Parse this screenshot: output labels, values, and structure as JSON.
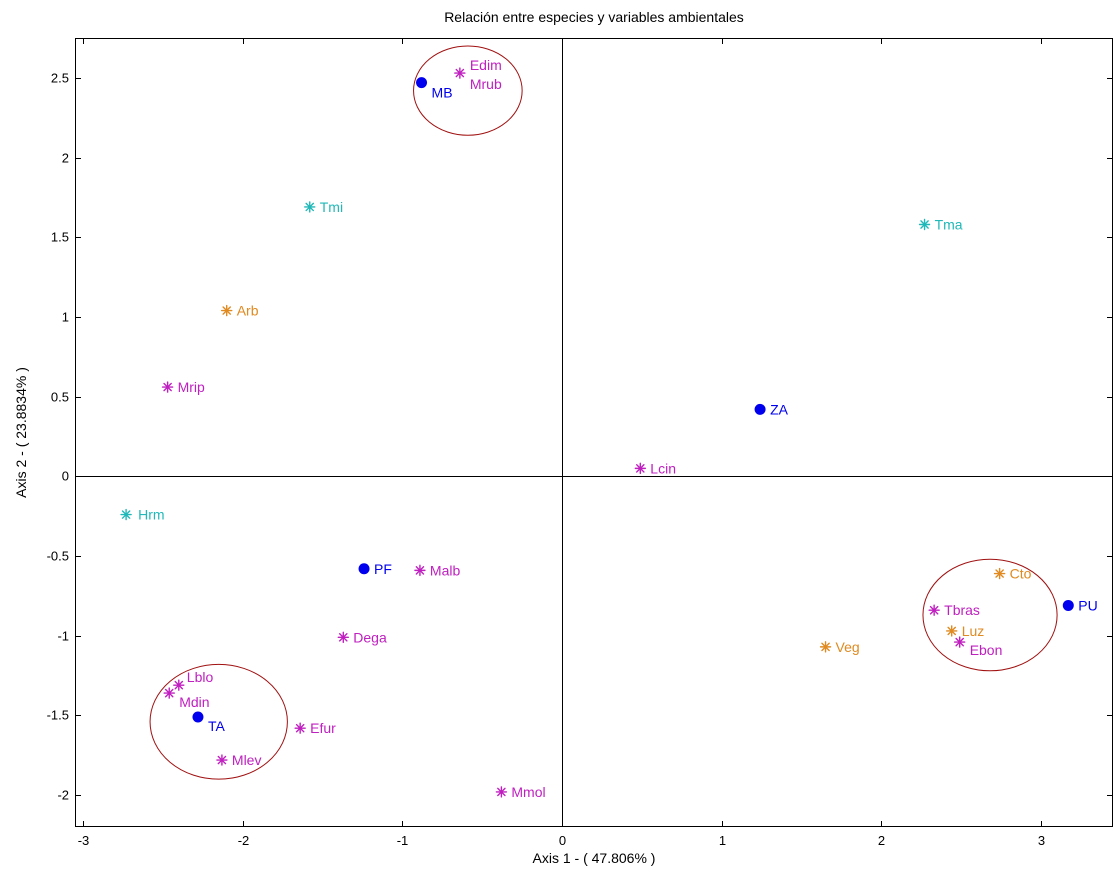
{
  "chart_data": {
    "type": "scatter",
    "title": "Relación entre especies y variables ambientales",
    "xlabel": "Axis 1 - ( 47.806% )",
    "ylabel": "Axis 2 - ( 23.8834% )",
    "xlim": [
      -3.05,
      3.45
    ],
    "ylim": [
      -2.2,
      2.75
    ],
    "x_ticks": [
      -3,
      -2,
      -1,
      0,
      1,
      2,
      3
    ],
    "y_ticks": [
      -2,
      -1.5,
      -1,
      -0.5,
      0,
      0.5,
      1,
      1.5,
      2,
      2.5
    ],
    "grid": false,
    "zero_lines": true,
    "colors": {
      "sites": "#0000ee",
      "species": "#c020c0",
      "climate": "#20b8b8",
      "habitat": "#e08a20",
      "highlight_circle": "#a01010"
    },
    "points": [
      {
        "label": "MB",
        "x": -0.88,
        "y": 2.47,
        "group": "sites",
        "marker": "dot",
        "dx": 10,
        "dy": 15
      },
      {
        "label": "Edim",
        "x": -0.64,
        "y": 2.53,
        "group": "species",
        "marker": "star",
        "dx": 10,
        "dy": -3
      },
      {
        "label": "Mrub",
        "x": -0.64,
        "y": 2.53,
        "group": "species",
        "marker": "none",
        "dx": 10,
        "dy": 16
      },
      {
        "label": "Tmi",
        "x": -1.58,
        "y": 1.69,
        "group": "climate",
        "marker": "star",
        "dx": 10,
        "dy": 5
      },
      {
        "label": "Tma",
        "x": 2.27,
        "y": 1.58,
        "group": "climate",
        "marker": "star",
        "dx": 10,
        "dy": 5
      },
      {
        "label": "Arb",
        "x": -2.1,
        "y": 1.04,
        "group": "habitat",
        "marker": "star",
        "dx": 10,
        "dy": 5
      },
      {
        "label": "Mrip",
        "x": -2.47,
        "y": 0.56,
        "group": "species",
        "marker": "star",
        "dx": 10,
        "dy": 5
      },
      {
        "label": "ZA",
        "x": 1.24,
        "y": 0.42,
        "group": "sites",
        "marker": "dot",
        "dx": 10,
        "dy": 5
      },
      {
        "label": "Lcin",
        "x": 0.49,
        "y": 0.05,
        "group": "species",
        "marker": "star",
        "dx": 10,
        "dy": 5
      },
      {
        "label": "Hrm",
        "x": -2.73,
        "y": -0.24,
        "group": "climate",
        "marker": "star",
        "dx": 12,
        "dy": 5
      },
      {
        "label": "PF",
        "x": -1.24,
        "y": -0.58,
        "group": "sites",
        "marker": "dot",
        "dx": 10,
        "dy": 5
      },
      {
        "label": "Malb",
        "x": -0.89,
        "y": -0.59,
        "group": "species",
        "marker": "star",
        "dx": 10,
        "dy": 5
      },
      {
        "label": "Dega",
        "x": -1.37,
        "y": -1.01,
        "group": "species",
        "marker": "star",
        "dx": 10,
        "dy": 5
      },
      {
        "label": "Lblo",
        "x": -2.4,
        "y": -1.31,
        "group": "species",
        "marker": "star",
        "dx": 8,
        "dy": -3
      },
      {
        "label": "Mdin",
        "x": -2.46,
        "y": -1.36,
        "group": "species",
        "marker": "star",
        "dx": 10,
        "dy": 14
      },
      {
        "label": "TA",
        "x": -2.28,
        "y": -1.51,
        "group": "sites",
        "marker": "dot",
        "dx": 10,
        "dy": 14
      },
      {
        "label": "Efur",
        "x": -1.64,
        "y": -1.58,
        "group": "species",
        "marker": "star",
        "dx": 10,
        "dy": 5
      },
      {
        "label": "Mlev",
        "x": -2.13,
        "y": -1.78,
        "group": "species",
        "marker": "star",
        "dx": 10,
        "dy": 5
      },
      {
        "label": "Mmol",
        "x": -0.38,
        "y": -1.98,
        "group": "species",
        "marker": "star",
        "dx": 10,
        "dy": 5
      },
      {
        "label": "Cto",
        "x": 2.74,
        "y": -0.61,
        "group": "habitat",
        "marker": "star",
        "dx": 10,
        "dy": 5
      },
      {
        "label": "PU",
        "x": 3.17,
        "y": -0.81,
        "group": "sites",
        "marker": "dot",
        "dx": 10,
        "dy": 5
      },
      {
        "label": "Tbras",
        "x": 2.33,
        "y": -0.84,
        "group": "species",
        "marker": "star",
        "dx": 10,
        "dy": 5
      },
      {
        "label": "Luz",
        "x": 2.44,
        "y": -0.97,
        "group": "habitat",
        "marker": "star",
        "dx": 10,
        "dy": 5
      },
      {
        "label": "Ebon",
        "x": 2.49,
        "y": -1.04,
        "group": "species",
        "marker": "star",
        "dx": 10,
        "dy": 13
      },
      {
        "label": "Veg",
        "x": 1.65,
        "y": -1.07,
        "group": "habitat",
        "marker": "star",
        "dx": 10,
        "dy": 5
      }
    ],
    "circles": [
      {
        "name": "cluster-top",
        "cx": -0.59,
        "cy": 2.42,
        "rx": 0.34,
        "ry": 0.28
      },
      {
        "name": "cluster-right",
        "cx": 2.68,
        "cy": -0.87,
        "rx": 0.42,
        "ry": 0.35
      },
      {
        "name": "cluster-left",
        "cx": -2.15,
        "cy": -1.54,
        "rx": 0.43,
        "ry": 0.36
      }
    ]
  }
}
